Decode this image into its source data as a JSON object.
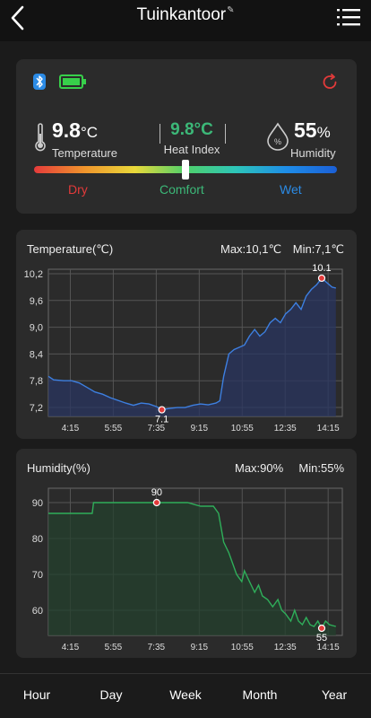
{
  "header": {
    "title": "Tuinkantoor",
    "back_icon": "chevron-left-icon",
    "menu_icon": "list-menu-icon",
    "edit_icon": "edit-icon"
  },
  "sensor": {
    "temperature": {
      "value": "9.8",
      "unit": "°C",
      "label": "Temperature"
    },
    "heat_index": {
      "value": "9.8",
      "unit": "°C",
      "label": "Heat Index",
      "color": "#3cb878"
    },
    "humidity": {
      "value": "55",
      "unit": "%",
      "label": "Humidity"
    },
    "comfort_scale": {
      "dry": "Dry",
      "comfort": "Comfort",
      "wet": "Wet",
      "level": 0.5
    },
    "colors": {
      "dry": "#e23a3a",
      "comfort": "#3cb878",
      "wet": "#2b8be6",
      "bluetooth": "#2b8be6",
      "battery": "#37d04a",
      "refresh": "#e23a3a"
    }
  },
  "chart_data": [
    {
      "type": "line",
      "title": "Temperature(℃)",
      "max_label": "Max:10,1℃",
      "min_label": "Min:7,1℃",
      "x_ticks": [
        "4:15",
        "5:55",
        "7:35",
        "9:15",
        "10:55",
        "12:35",
        "14:15"
      ],
      "y_ticks": [
        "7,2",
        "7,8",
        "8,4",
        "9,0",
        "9,6",
        "10,2"
      ],
      "ylim": [
        7.0,
        10.3
      ],
      "color": "#3d7fe0",
      "fill": "#2a3560",
      "max_marker": {
        "label": "10.1",
        "t": 14.0,
        "v": 10.1
      },
      "min_marker": {
        "label": "7.1",
        "t": 7.8,
        "v": 7.15
      },
      "series": [
        {
          "values": [
            [
              3.4,
              7.9
            ],
            [
              3.6,
              7.82
            ],
            [
              4.0,
              7.8
            ],
            [
              4.3,
              7.8
            ],
            [
              4.6,
              7.75
            ],
            [
              4.9,
              7.65
            ],
            [
              5.2,
              7.55
            ],
            [
              5.5,
              7.5
            ],
            [
              5.8,
              7.42
            ],
            [
              6.1,
              7.36
            ],
            [
              6.4,
              7.3
            ],
            [
              6.7,
              7.25
            ],
            [
              7.0,
              7.3
            ],
            [
              7.3,
              7.28
            ],
            [
              7.6,
              7.22
            ],
            [
              7.8,
              7.15
            ],
            [
              8.1,
              7.18
            ],
            [
              8.4,
              7.2
            ],
            [
              8.7,
              7.2
            ],
            [
              9.0,
              7.25
            ],
            [
              9.3,
              7.28
            ],
            [
              9.6,
              7.26
            ],
            [
              9.9,
              7.3
            ],
            [
              10.05,
              7.35
            ],
            [
              10.2,
              7.9
            ],
            [
              10.4,
              8.4
            ],
            [
              10.6,
              8.5
            ],
            [
              10.8,
              8.55
            ],
            [
              11.0,
              8.6
            ],
            [
              11.2,
              8.8
            ],
            [
              11.4,
              8.95
            ],
            [
              11.6,
              8.8
            ],
            [
              11.8,
              8.9
            ],
            [
              12.0,
              9.1
            ],
            [
              12.2,
              9.2
            ],
            [
              12.4,
              9.1
            ],
            [
              12.6,
              9.3
            ],
            [
              12.8,
              9.4
            ],
            [
              13.0,
              9.55
            ],
            [
              13.2,
              9.4
            ],
            [
              13.4,
              9.7
            ],
            [
              13.6,
              9.85
            ],
            [
              13.8,
              9.95
            ],
            [
              14.0,
              10.1
            ],
            [
              14.2,
              10.0
            ],
            [
              14.4,
              9.9
            ],
            [
              14.55,
              9.88
            ]
          ]
        }
      ]
    },
    {
      "type": "area",
      "title": "Humidity(%)",
      "max_label": "Max:90%",
      "min_label": "Min:55%",
      "x_ticks": [
        "4:15",
        "5:55",
        "7:35",
        "9:15",
        "10:55",
        "12:35",
        "14:15"
      ],
      "y_ticks": [
        "60",
        "70",
        "80",
        "90"
      ],
      "ylim": [
        53,
        94
      ],
      "color": "#2fae5a",
      "fill": "#24402e",
      "max_marker": {
        "label": "90",
        "t": 7.6,
        "v": 90
      },
      "min_marker": {
        "label": "55",
        "t": 14.0,
        "v": 55
      },
      "series": [
        {
          "values": [
            [
              3.4,
              87
            ],
            [
              4.0,
              87
            ],
            [
              4.6,
              87
            ],
            [
              5.1,
              87
            ],
            [
              5.15,
              90
            ],
            [
              6.0,
              90
            ],
            [
              7.0,
              90
            ],
            [
              7.6,
              90
            ],
            [
              8.2,
              90
            ],
            [
              8.8,
              90
            ],
            [
              9.3,
              89
            ],
            [
              9.8,
              89
            ],
            [
              10.0,
              87
            ],
            [
              10.2,
              79
            ],
            [
              10.4,
              76
            ],
            [
              10.55,
              73
            ],
            [
              10.7,
              70
            ],
            [
              10.9,
              68
            ],
            [
              11.0,
              71
            ],
            [
              11.2,
              68
            ],
            [
              11.4,
              65
            ],
            [
              11.55,
              67
            ],
            [
              11.7,
              64
            ],
            [
              11.9,
              63
            ],
            [
              12.1,
              61
            ],
            [
              12.3,
              63
            ],
            [
              12.45,
              60
            ],
            [
              12.6,
              59
            ],
            [
              12.8,
              57
            ],
            [
              12.95,
              60
            ],
            [
              13.1,
              57
            ],
            [
              13.25,
              56
            ],
            [
              13.4,
              58
            ],
            [
              13.55,
              56
            ],
            [
              13.7,
              55.5
            ],
            [
              13.85,
              57
            ],
            [
              14.0,
              55
            ],
            [
              14.15,
              57
            ],
            [
              14.3,
              56
            ],
            [
              14.55,
              55.5
            ]
          ]
        }
      ]
    }
  ],
  "tabs": [
    "Hour",
    "Day",
    "Week",
    "Month",
    "Year"
  ]
}
